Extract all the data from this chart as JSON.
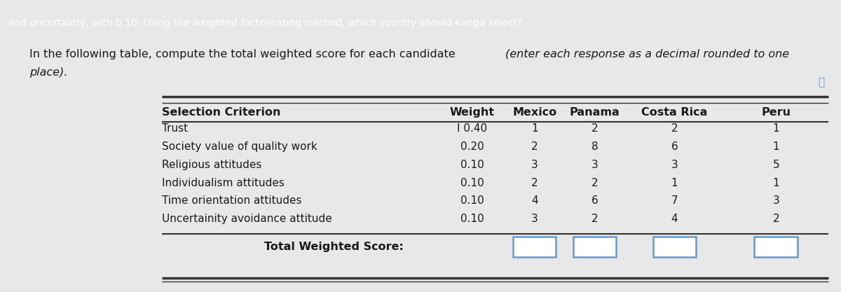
{
  "header_text_top": "and uncertainty, with 0.10. Using the weighted factor-rating method, which country should Kanga select?",
  "intro_normal": "In the following table, compute the total weighted score for each candidate ",
  "intro_italic": "(enter each response as a decimal rounded to one",
  "intro_line2_italic": "place).",
  "columns": [
    "Selection Criterion",
    "Weight",
    "Mexico",
    "Panama",
    "Costa Rica",
    "Peru"
  ],
  "rows": [
    [
      "Trust",
      "0.40",
      "1",
      "2",
      "2",
      "1"
    ],
    [
      "Society value of quality work",
      "0.20",
      "2",
      "8",
      "6",
      "1"
    ],
    [
      "Religious attitudes",
      "0.10",
      "3",
      "3",
      "3",
      "5"
    ],
    [
      "Individualism attitudes",
      "0.10",
      "2",
      "2",
      "1",
      "1"
    ],
    [
      "Time orientation attitudes",
      "0.10",
      "4",
      "6",
      "7",
      "3"
    ],
    [
      "Uncertainity avoidance attitude",
      "0.10",
      "3",
      "2",
      "4",
      "2"
    ]
  ],
  "total_row_label": "Total Weighted Score:",
  "bg_top_bar": "#3d9dc8",
  "bg_main": "#e8e8e8",
  "bg_left_stripe": "#d4c87a",
  "text_dark": "#1a1a1a",
  "text_white": "#ffffff",
  "box_border": "#6699cc",
  "box_fill": "#ffffff",
  "line_color": "#333333"
}
